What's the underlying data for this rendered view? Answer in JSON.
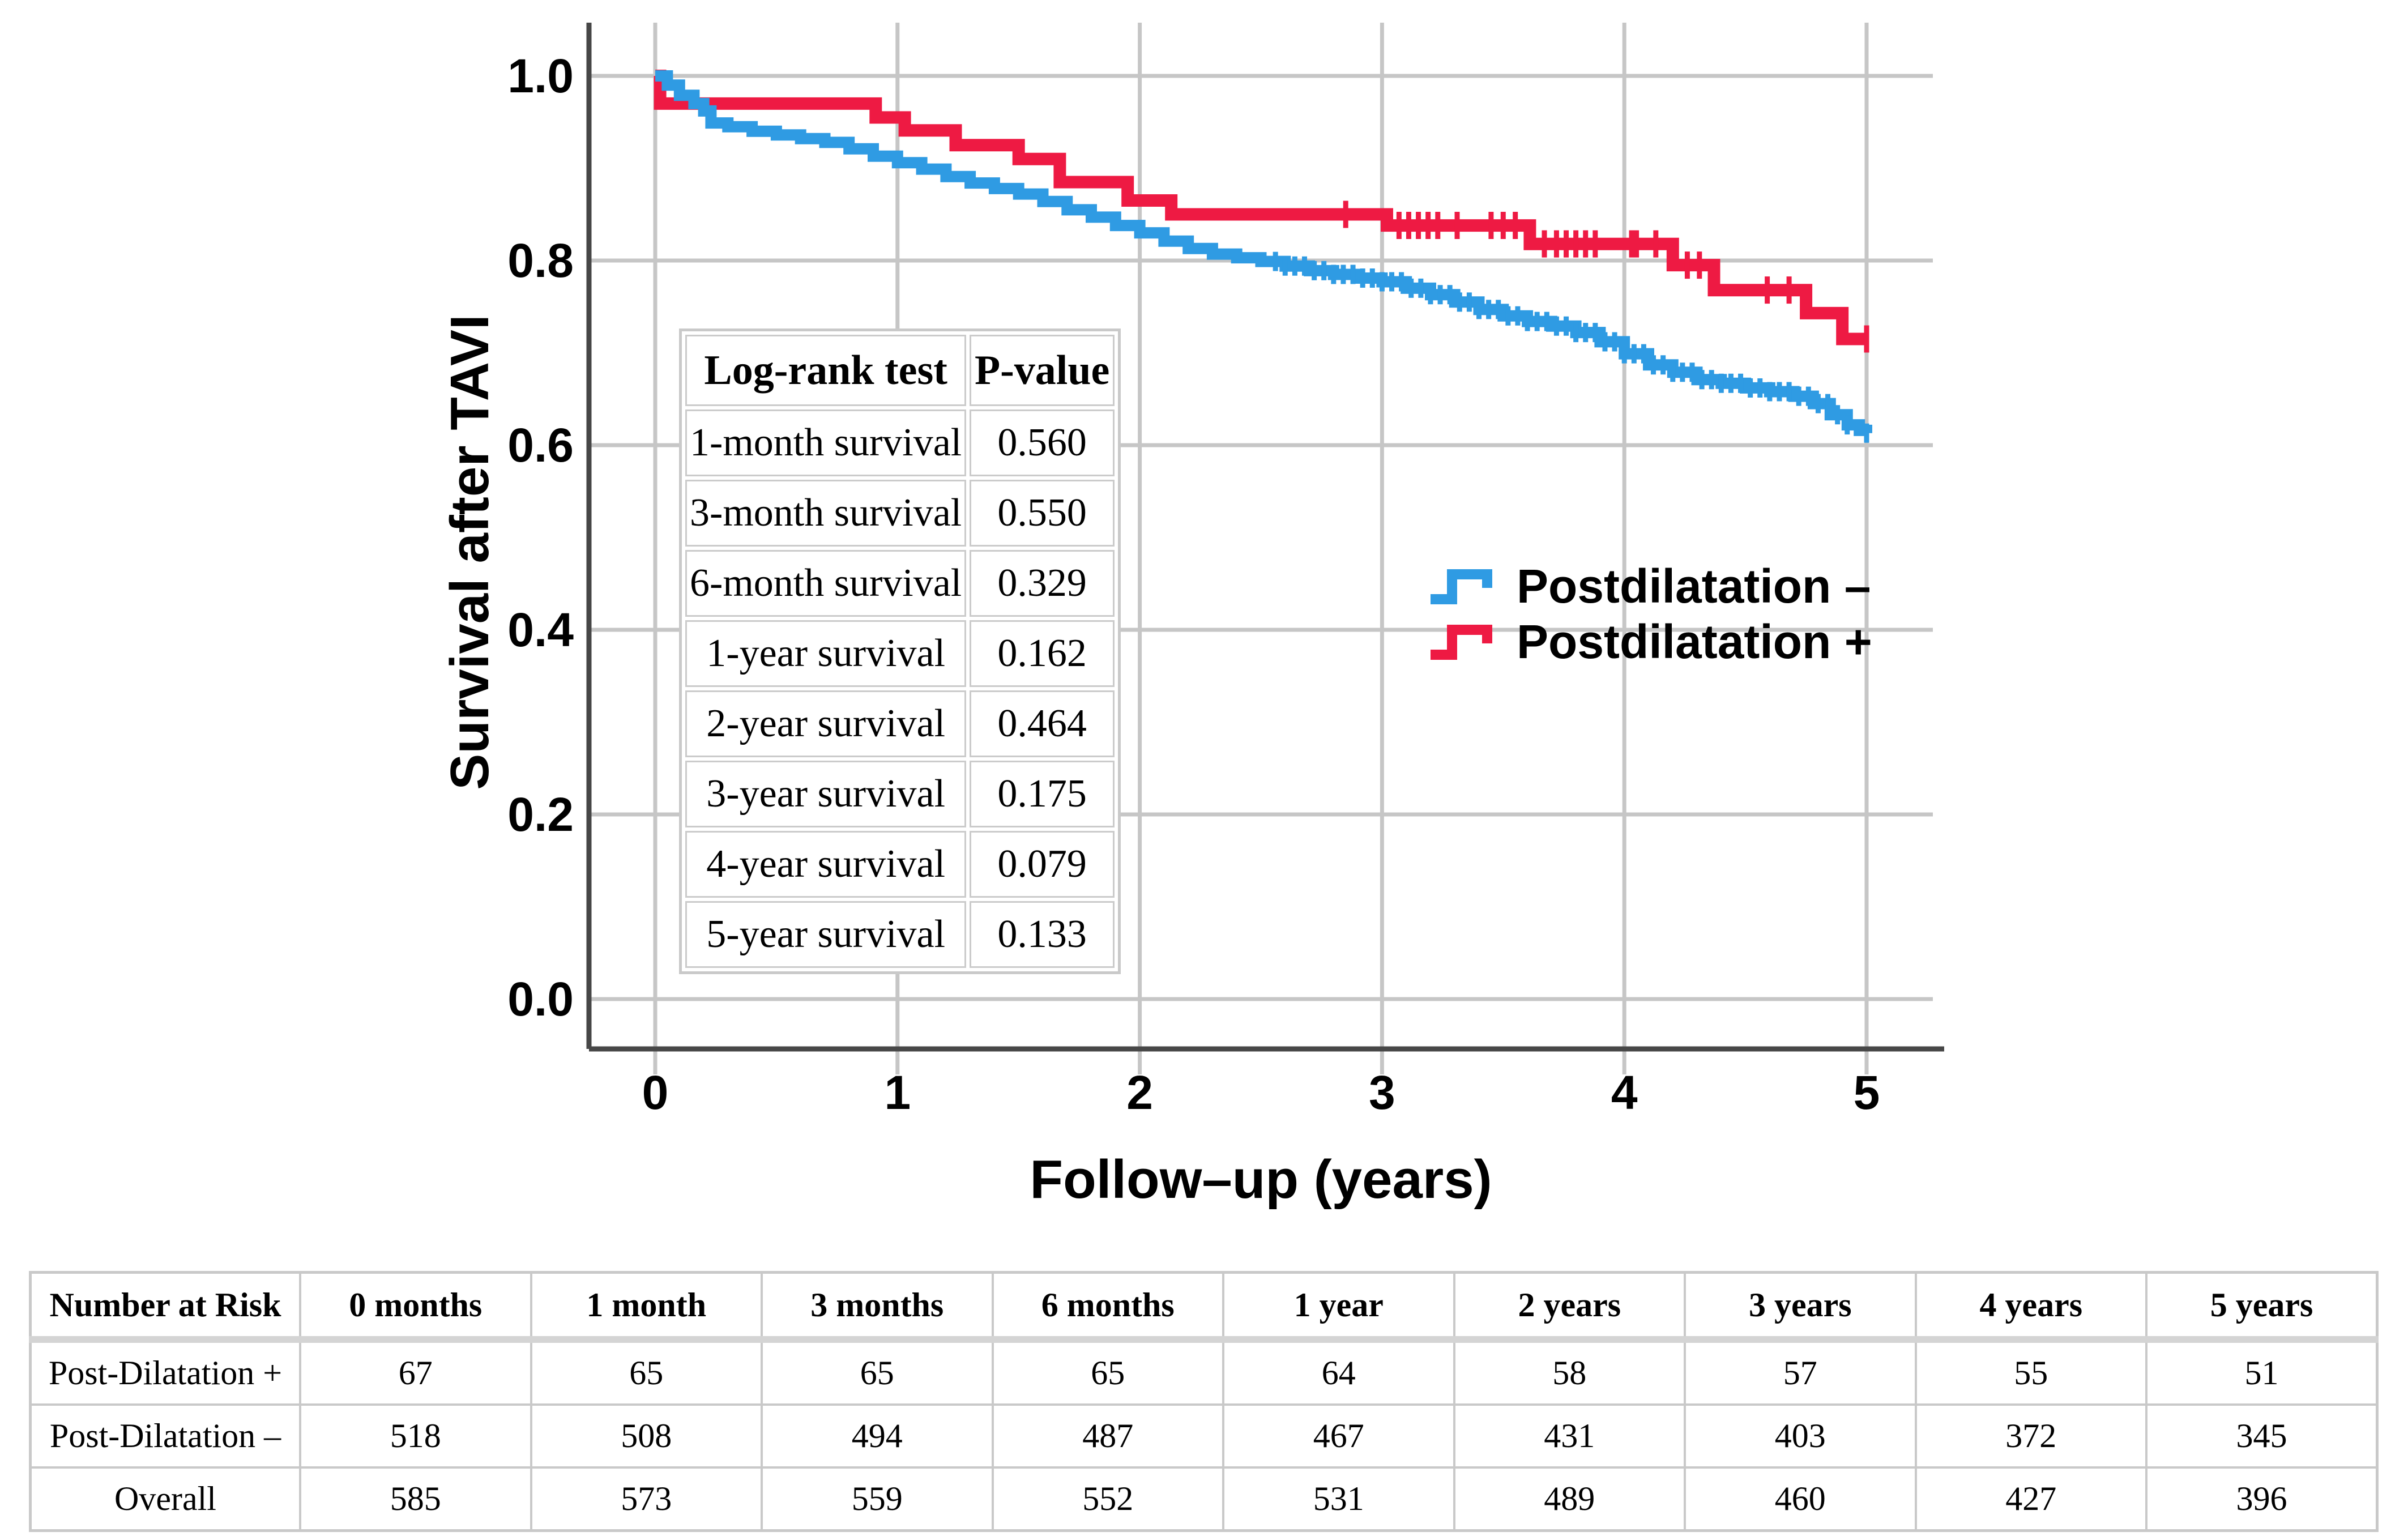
{
  "chart_data": {
    "type": "line",
    "subtype": "kaplan-meier-step",
    "title": "",
    "xlabel": "Follow–up (years)",
    "ylabel": "Survival after TAVI",
    "x_ticks": [
      "0",
      "1",
      "2",
      "3",
      "4",
      "5"
    ],
    "x_tick_values": [
      0,
      1,
      2,
      3,
      4,
      5
    ],
    "y_ticks": [
      "1.0",
      "0.8",
      "0.6",
      "0.4",
      "0.2",
      "0.0"
    ],
    "y_tick_values": [
      1.0,
      0.8,
      0.6,
      0.4,
      0.2,
      0.0
    ],
    "xlim": [
      -0.28,
      5.27
    ],
    "ylim": [
      -0.055,
      1.06
    ],
    "grid": true,
    "legend_position": "right-middle",
    "colors": {
      "grid": "#c6c6c6",
      "axis": "#474747",
      "text": "#000000"
    },
    "series": [
      {
        "name": "Postdilatation –",
        "color": "#2f9be3",
        "line_width": 20,
        "points": [
          [
            0.0,
            1.0
          ],
          [
            0.05,
            0.99
          ],
          [
            0.1,
            0.979
          ],
          [
            0.16,
            0.97
          ],
          [
            0.2,
            0.962
          ],
          [
            0.23,
            0.949
          ],
          [
            0.3,
            0.945
          ],
          [
            0.4,
            0.94
          ],
          [
            0.5,
            0.936
          ],
          [
            0.6,
            0.932
          ],
          [
            0.7,
            0.928
          ],
          [
            0.8,
            0.921
          ],
          [
            0.9,
            0.913
          ],
          [
            1.0,
            0.906
          ],
          [
            1.1,
            0.899
          ],
          [
            1.2,
            0.891
          ],
          [
            1.3,
            0.884
          ],
          [
            1.4,
            0.878
          ],
          [
            1.5,
            0.872
          ],
          [
            1.6,
            0.864
          ],
          [
            1.7,
            0.855
          ],
          [
            1.8,
            0.847
          ],
          [
            1.9,
            0.838
          ],
          [
            2.0,
            0.83
          ],
          [
            2.1,
            0.821
          ],
          [
            2.2,
            0.813
          ],
          [
            2.3,
            0.807
          ],
          [
            2.4,
            0.803
          ],
          [
            2.5,
            0.799
          ],
          [
            2.6,
            0.794
          ],
          [
            2.7,
            0.789
          ],
          [
            2.8,
            0.785
          ],
          [
            2.9,
            0.781
          ],
          [
            3.0,
            0.777
          ],
          [
            3.1,
            0.77
          ],
          [
            3.2,
            0.763
          ],
          [
            3.3,
            0.755
          ],
          [
            3.4,
            0.747
          ],
          [
            3.5,
            0.74
          ],
          [
            3.6,
            0.734
          ],
          [
            3.7,
            0.729
          ],
          [
            3.8,
            0.722
          ],
          [
            3.9,
            0.712
          ],
          [
            4.0,
            0.699
          ],
          [
            4.1,
            0.687
          ],
          [
            4.2,
            0.679
          ],
          [
            4.3,
            0.671
          ],
          [
            4.4,
            0.667
          ],
          [
            4.5,
            0.662
          ],
          [
            4.6,
            0.658
          ],
          [
            4.7,
            0.653
          ],
          [
            4.78,
            0.645
          ],
          [
            4.85,
            0.633
          ],
          [
            4.92,
            0.622
          ],
          [
            4.97,
            0.616
          ],
          [
            5.0,
            0.613
          ]
        ],
        "censor_tick_halfheight": 17,
        "censor_ticks": [
          2.56,
          2.6,
          2.64,
          2.68,
          2.72,
          2.76,
          2.8,
          2.84,
          2.88,
          2.92,
          2.96,
          3.0,
          3.04,
          3.08,
          3.12,
          3.16,
          3.2,
          3.24,
          3.28,
          3.32,
          3.36,
          3.4,
          3.44,
          3.48,
          3.52,
          3.56,
          3.6,
          3.64,
          3.68,
          3.72,
          3.76,
          3.8,
          3.84,
          3.88,
          3.92,
          3.96,
          4.0,
          4.04,
          4.08,
          4.12,
          4.16,
          4.2,
          4.24,
          4.28,
          4.32,
          4.36,
          4.4,
          4.44,
          4.48,
          4.52,
          4.56,
          4.6,
          4.64,
          4.68,
          4.72,
          4.76,
          4.8,
          4.84,
          4.88,
          4.92,
          5.0
        ]
      },
      {
        "name": "Postdilatation +",
        "color": "#ee1a43",
        "line_width": 22,
        "points": [
          [
            0.0,
            1.0
          ],
          [
            0.02,
            0.97
          ],
          [
            0.91,
            0.955
          ],
          [
            1.03,
            0.941
          ],
          [
            1.24,
            0.925
          ],
          [
            1.5,
            0.91
          ],
          [
            1.67,
            0.885
          ],
          [
            1.95,
            0.865
          ],
          [
            2.13,
            0.85
          ],
          [
            3.02,
            0.838
          ],
          [
            3.61,
            0.818
          ],
          [
            4.2,
            0.795
          ],
          [
            4.37,
            0.768
          ],
          [
            4.75,
            0.743
          ],
          [
            4.9,
            0.715
          ]
        ],
        "censor_tick_halfheight": 24,
        "censor_ticks": [
          2.85,
          3.07,
          3.11,
          3.15,
          3.19,
          3.23,
          3.31,
          3.45,
          3.5,
          3.55,
          3.67,
          3.72,
          3.76,
          3.8,
          3.84,
          3.88,
          4.03,
          4.05,
          4.13,
          4.26,
          4.31,
          4.59,
          4.68,
          5.0
        ]
      }
    ]
  },
  "log_rank_table": {
    "headers": [
      "Log-rank test",
      "P-value"
    ],
    "rows": [
      [
        "1-month survival",
        "0.560"
      ],
      [
        "3-month survival",
        "0.550"
      ],
      [
        "6-month survival",
        "0.329"
      ],
      [
        "1-year survival",
        "0.162"
      ],
      [
        "2-year survival",
        "0.464"
      ],
      [
        "3-year survival",
        "0.175"
      ],
      [
        "4-year survival",
        "0.079"
      ],
      [
        "5-year survival",
        "0.133"
      ]
    ]
  },
  "risk_table": {
    "corner": "Number at Risk",
    "columns": [
      "0 months",
      "1 month",
      "3 months",
      "6 months",
      "1 year",
      "2 years",
      "3 years",
      "4 years",
      "5 years"
    ],
    "rows": [
      {
        "label": "Post-Dilatation +",
        "values": [
          "67",
          "65",
          "65",
          "65",
          "64",
          "58",
          "57",
          "55",
          "51"
        ]
      },
      {
        "label": "Post-Dilatation –",
        "values": [
          "518",
          "508",
          "494",
          "487",
          "467",
          "431",
          "403",
          "372",
          "345"
        ]
      },
      {
        "label": "Overall",
        "values": [
          "585",
          "573",
          "559",
          "552",
          "531",
          "489",
          "460",
          "427",
          "396"
        ]
      }
    ]
  },
  "legend": {
    "items": [
      {
        "label": "Postdilatation –",
        "color": "#2f9be3"
      },
      {
        "label": "Postdilatation +",
        "color": "#ee1a43"
      }
    ]
  }
}
